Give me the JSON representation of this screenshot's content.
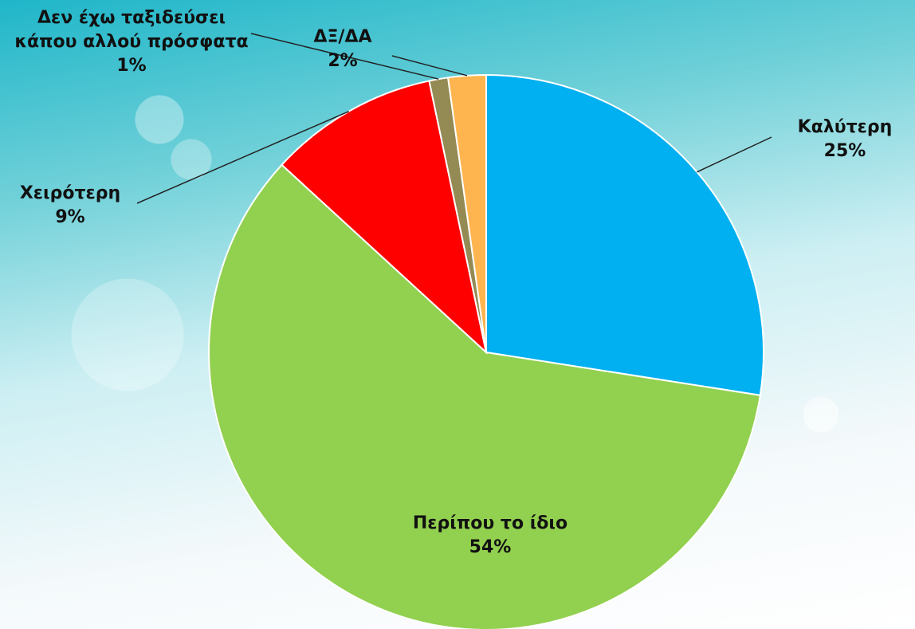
{
  "chart_data": {
    "type": "pie",
    "categories": [
      "Καλύτερη",
      "Περίπου το ίδιο",
      "Χειρότερη",
      "Δεν έχω ταξιδεύσει κάπου αλλού πρόσφατα",
      "ΔΞ/ΔΑ"
    ],
    "values": [
      25,
      54,
      9,
      1,
      2
    ],
    "value_labels": [
      "25%",
      "54%",
      "9%",
      "1%",
      "2%"
    ],
    "colors": [
      "#00b0f0",
      "#92d050",
      "#ff0000",
      "#948a54",
      "#ffb54f"
    ]
  }
}
